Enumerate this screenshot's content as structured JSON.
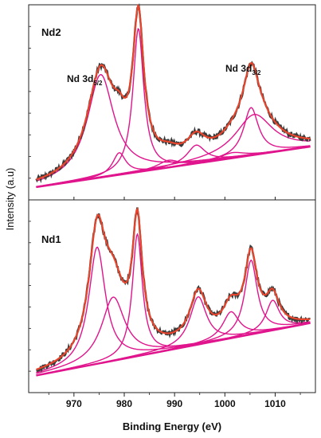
{
  "chart_data": {
    "type": "line",
    "xlabel": "Binding Energy (eV)",
    "ylabel": "Intensity (a.u)",
    "xlim": [
      961,
      1018
    ],
    "x_ticks": [
      970,
      980,
      990,
      1000,
      1010
    ],
    "grid": false,
    "colors": {
      "raw": "#3a3a3a",
      "envelope": "#e8452c",
      "component": "#e0148c"
    },
    "panels": [
      {
        "name": "Nd2",
        "annotations": [
          {
            "text_main": "Nd 3d",
            "sub": "5/2",
            "x": 975
          },
          {
            "text_main": "Nd 3d",
            "sub": "3/2",
            "x": 1005
          }
        ],
        "ylim": [
          0,
          1
        ],
        "background": {
          "x": [
            961,
            1018
          ],
          "y": [
            0.02,
            0.25
          ]
        },
        "components": [
          {
            "center": 975.3,
            "height": 0.56,
            "width": 3.2
          },
          {
            "center": 979.0,
            "height": 0.12,
            "width": 1.6
          },
          {
            "center": 982.8,
            "height": 0.78,
            "width": 1.3
          },
          {
            "center": 988.8,
            "height": 0.04,
            "width": 2.5
          },
          {
            "center": 994.3,
            "height": 0.1,
            "width": 2.2
          },
          {
            "center": 1001.5,
            "height": 0.03,
            "width": 3.0
          },
          {
            "center": 1005.2,
            "height": 0.26,
            "width": 1.8
          },
          {
            "center": 1005.8,
            "height": 0.22,
            "width": 4.5
          }
        ]
      },
      {
        "name": "Nd1",
        "annotations": [],
        "ylim": [
          0,
          1
        ],
        "background": {
          "x": [
            961,
            1018
          ],
          "y": [
            0.03,
            0.34
          ]
        },
        "components": [
          {
            "center": 974.6,
            "height": 0.66,
            "width": 2.0
          },
          {
            "center": 977.8,
            "height": 0.36,
            "width": 2.8
          },
          {
            "center": 982.6,
            "height": 0.69,
            "width": 1.2
          },
          {
            "center": 994.7,
            "height": 0.27,
            "width": 2.0
          },
          {
            "center": 1001.2,
            "height": 0.15,
            "width": 2.0
          },
          {
            "center": 1005.2,
            "height": 0.42,
            "width": 1.5
          },
          {
            "center": 1009.5,
            "height": 0.17,
            "width": 1.6
          }
        ]
      }
    ]
  }
}
